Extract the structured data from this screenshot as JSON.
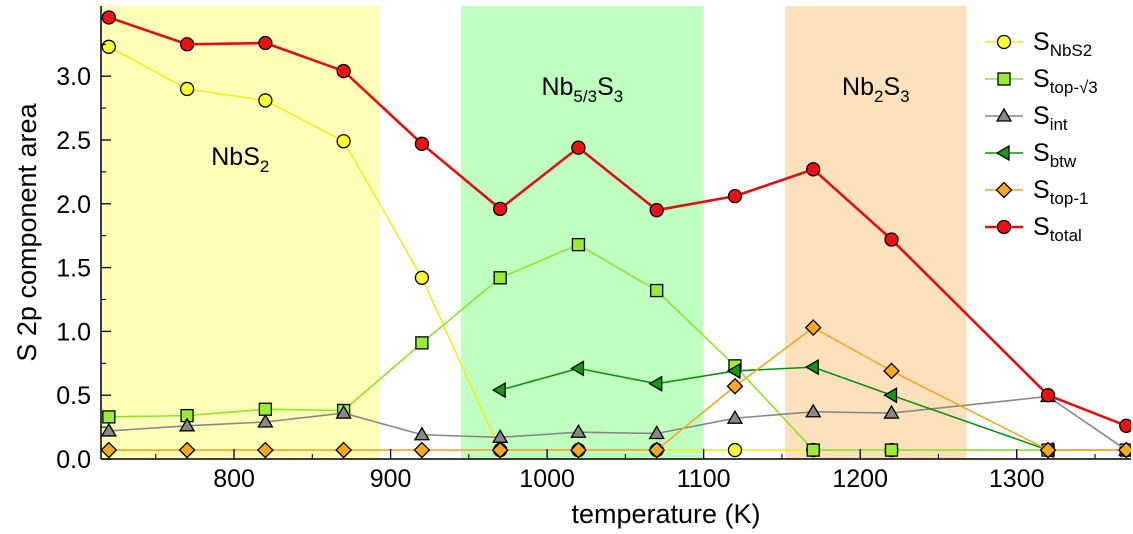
{
  "chart_data": {
    "type": "line",
    "xlabel": "temperature (K)",
    "ylabel": "S 2p component area",
    "xlim": [
      715,
      1373
    ],
    "ylim": [
      0,
      3.55
    ],
    "x_ticks": [
      800,
      900,
      1000,
      1100,
      1200,
      1300
    ],
    "y_ticks": [
      0.0,
      0.5,
      1.0,
      1.5,
      2.0,
      2.5,
      3.0
    ],
    "x_tick_labels": [
      "800",
      "900",
      "1000",
      "1100",
      "1200",
      "1300"
    ],
    "y_tick_labels": [
      "0.0",
      "0.5",
      "1.0",
      "1.5",
      "2.0",
      "2.5",
      "3.0"
    ],
    "grid": false,
    "legend_position": "top-right",
    "regions": [
      {
        "main": "NbS",
        "sub": "2",
        "tail": "",
        "x_range": [
          715,
          893
        ],
        "color": "#ffffb8"
      },
      {
        "main": "Nb",
        "sub": "5/3",
        "tail": "S",
        "tail_sub": "3",
        "x_range": [
          945,
          1100
        ],
        "color": "#bfffbf"
      },
      {
        "main": "Nb",
        "sub": "2",
        "tail": "S",
        "tail_sub": "3",
        "x_range": [
          1152,
          1268
        ],
        "color": "#fde1bd"
      }
    ],
    "series": [
      {
        "name": "S",
        "name_sub": "NbS2",
        "marker": "circle",
        "line_color": "#f2ef1a",
        "marker_fill": "#ffff33",
        "x": [
          720,
          770,
          820,
          870,
          920,
          970,
          1020,
          1070,
          1120,
          1170,
          1220,
          1320,
          1370
        ],
        "y": [
          3.23,
          2.9,
          2.81,
          2.49,
          1.42,
          0.07,
          0.07,
          0.07,
          0.07,
          0.07,
          0.07,
          0.07,
          0.07
        ]
      },
      {
        "name": "S",
        "name_sub": "top-√3",
        "marker": "square",
        "line_color": "#8fe52a",
        "marker_fill": "#99ee33",
        "x": [
          720,
          770,
          820,
          870,
          920,
          970,
          1020,
          1070,
          1120,
          1170,
          1220,
          1320,
          1370
        ],
        "y": [
          0.33,
          0.34,
          0.39,
          0.38,
          0.91,
          1.42,
          1.68,
          1.32,
          0.73,
          0.07,
          0.07,
          0.07,
          0.07
        ]
      },
      {
        "name": "S",
        "name_sub": "int",
        "marker": "triangle-up",
        "line_color": "#888888",
        "marker_fill": "#888888",
        "x": [
          720,
          770,
          820,
          870,
          920,
          970,
          1020,
          1070,
          1120,
          1170,
          1220,
          1320,
          1370
        ],
        "y": [
          0.22,
          0.26,
          0.29,
          0.36,
          0.19,
          0.17,
          0.21,
          0.2,
          0.32,
          0.37,
          0.36,
          0.49,
          0.07
        ]
      },
      {
        "name": "S",
        "name_sub": "btw",
        "marker": "triangle-left",
        "line_color": "#0f8f0f",
        "marker_fill": "#159915",
        "x": [
          970,
          1020,
          1070,
          1120,
          1170,
          1220,
          1320
        ],
        "y": [
          0.54,
          0.71,
          0.59,
          0.69,
          0.72,
          0.5,
          0.07
        ]
      },
      {
        "name": "S",
        "name_sub": "top-1",
        "marker": "diamond",
        "line_color": "#f5a623",
        "marker_fill": "#f7a81e",
        "x": [
          720,
          770,
          820,
          870,
          920,
          970,
          1020,
          1070,
          1120,
          1170,
          1220,
          1320,
          1370
        ],
        "y": [
          0.07,
          0.07,
          0.07,
          0.07,
          0.07,
          0.07,
          0.07,
          0.07,
          0.57,
          1.03,
          0.69,
          0.07,
          0.07
        ]
      },
      {
        "name": "S",
        "name_sub": "total",
        "marker": "circle",
        "line_color": "#e01010",
        "marker_fill": "#ee1111",
        "x": [
          720,
          770,
          820,
          870,
          920,
          970,
          1020,
          1070,
          1120,
          1170,
          1220,
          1320,
          1370
        ],
        "y": [
          3.46,
          3.25,
          3.26,
          3.04,
          2.47,
          1.96,
          2.44,
          1.95,
          2.06,
          2.27,
          1.72,
          0.5,
          0.26
        ]
      }
    ]
  }
}
